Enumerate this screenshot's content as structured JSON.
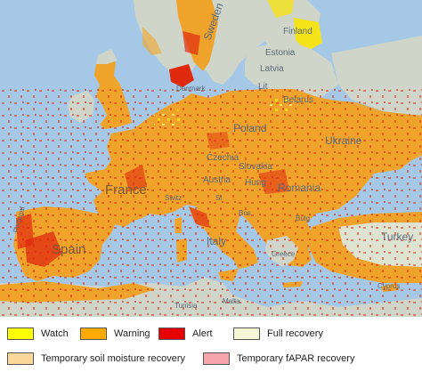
{
  "map": {
    "labels": {
      "sweden": "Sweden",
      "finland": "Finland",
      "estonia": "Estonia",
      "latvia": "Latvia",
      "lithuania": "Lit",
      "belarus": "Belarus",
      "denmark": "Denmark",
      "poland": "Poland",
      "ukraine": "Ukraine",
      "czechia": "Czechia",
      "slovakia": "Slovakia",
      "austria": "Austria",
      "hungary": "Hung",
      "romania": "Romania",
      "france": "France",
      "switzerland": "Switz",
      "slovenia": "Sl",
      "bosnia": "Bos",
      "bulgaria": "Bulg",
      "spain": "Spain",
      "portugal": "Portugal",
      "italy": "Italy",
      "greece": "Greece",
      "turkey": "Turkey",
      "cyprus": "Cyprus",
      "malta": "Malta",
      "tunisia": "Tunisia"
    }
  },
  "legend": {
    "items": [
      {
        "label": "Watch",
        "color": "#ffff00"
      },
      {
        "label": "Warning",
        "color": "#ffaa00"
      },
      {
        "label": "Alert",
        "color": "#e60000"
      },
      {
        "label": "Full recovery",
        "color": "#f4f8d6"
      },
      {
        "label": "Temporary soil moisture recovery",
        "color": "#fbd79a"
      },
      {
        "label": "Temporary fAPAR recovery",
        "color": "#f6a6ab"
      }
    ]
  },
  "colors": {
    "sea": "#a5c8e6",
    "land": "#cfd6c9",
    "warning": "#f0a32a",
    "alert": "#e02a10",
    "watch": "#f5e31a",
    "full_recovery": "#f4f8d6"
  }
}
